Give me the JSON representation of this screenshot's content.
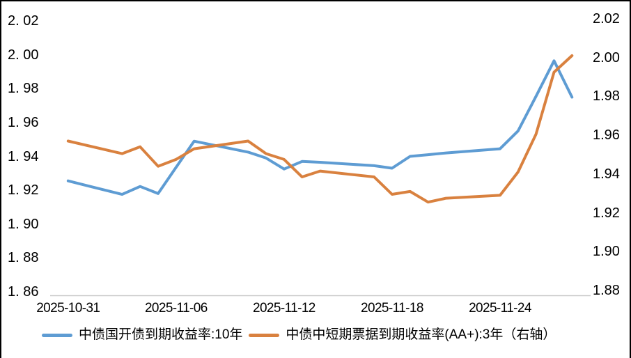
{
  "chart_data": {
    "type": "line",
    "title": "",
    "grid": false,
    "legend_position": "bottom",
    "x_axis": {
      "start_date": "2025-10-31",
      "end_date": "2025-11-28",
      "tick_labels": [
        "2025-10-31",
        "2025-11-06",
        "2025-11-12",
        "2025-11-18",
        "2025-11-24"
      ]
    },
    "left_axis": {
      "max": 2.02,
      "min": 1.86,
      "step": 0.02,
      "tick_labels": [
        "2. 02",
        "2. 00",
        "1. 98",
        "1. 96",
        "1. 94",
        "1. 92",
        "1. 90",
        "1. 88",
        "1. 86"
      ]
    },
    "right_axis": {
      "max": 2.02,
      "min": 1.88,
      "step": 0.02,
      "tick_labels": [
        "2.02",
        "2.00",
        "1.98",
        "1.96",
        "1.94",
        "1.92",
        "1.90",
        "1.88"
      ]
    },
    "series": [
      {
        "name": "中债国开债到期收益率:10年",
        "axis": "left",
        "color": "#5E9CD3",
        "points": [
          [
            "2025-10-31",
            1.9255
          ],
          [
            "2025-11-03",
            1.9175
          ],
          [
            "2025-11-04",
            1.9222
          ],
          [
            "2025-11-05",
            1.918
          ],
          [
            "2025-11-06",
            1.9335
          ],
          [
            "2025-11-07",
            1.949
          ],
          [
            "2025-11-10",
            1.9425
          ],
          [
            "2025-11-11",
            1.939
          ],
          [
            "2025-11-12",
            1.9325
          ],
          [
            "2025-11-13",
            1.937
          ],
          [
            "2025-11-14",
            1.9365
          ],
          [
            "2025-11-17",
            1.9345
          ],
          [
            "2025-11-18",
            1.933
          ],
          [
            "2025-11-19",
            1.94
          ],
          [
            "2025-11-20",
            1.941
          ],
          [
            "2025-11-21",
            1.942
          ],
          [
            "2025-11-24",
            1.9445
          ],
          [
            "2025-11-25",
            1.955
          ],
          [
            "2025-11-26",
            1.9755
          ],
          [
            "2025-11-27",
            1.9965
          ],
          [
            "2025-11-28",
            1.975
          ]
        ]
      },
      {
        "name": "中债中短期票据到期收益率(AA+):3年（右轴）",
        "axis": "right",
        "color": "#D9813F",
        "points": [
          [
            "2025-10-31",
            1.957
          ],
          [
            "2025-11-03",
            1.9505
          ],
          [
            "2025-11-04",
            1.954
          ],
          [
            "2025-11-05",
            1.944
          ],
          [
            "2025-11-06",
            1.9475
          ],
          [
            "2025-11-07",
            1.953
          ],
          [
            "2025-11-10",
            1.957
          ],
          [
            "2025-11-11",
            1.9505
          ],
          [
            "2025-11-12",
            1.9475
          ],
          [
            "2025-11-13",
            1.9385
          ],
          [
            "2025-11-14",
            1.9415
          ],
          [
            "2025-11-17",
            1.9385
          ],
          [
            "2025-11-18",
            1.9295
          ],
          [
            "2025-11-19",
            1.931
          ],
          [
            "2025-11-20",
            1.9255
          ],
          [
            "2025-11-21",
            1.9275
          ],
          [
            "2025-11-24",
            1.929
          ],
          [
            "2025-11-25",
            1.941
          ],
          [
            "2025-11-26",
            1.9605
          ],
          [
            "2025-11-27",
            1.9925
          ],
          [
            "2025-11-28",
            2.001
          ]
        ]
      }
    ]
  }
}
